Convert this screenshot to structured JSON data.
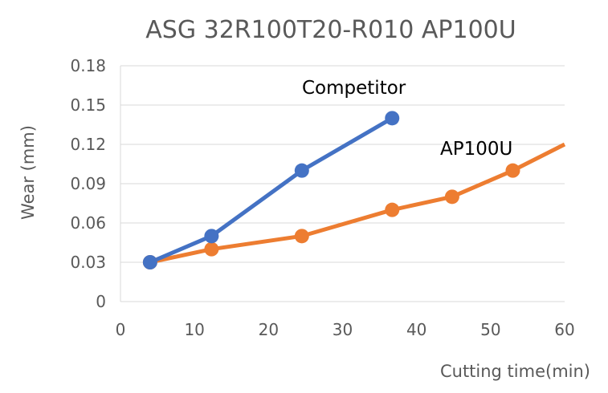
{
  "chart_data": {
    "type": "line",
    "title": "ASG 32R100T20-R010 AP100U",
    "xlabel": "Cutting time(min)",
    "ylabel": "Wear (mm)",
    "xlim": [
      0,
      60
    ],
    "ylim": [
      0,
      0.18
    ],
    "x_ticks": [
      "0",
      "10",
      "20",
      "30",
      "40",
      "50",
      "60"
    ],
    "y_ticks": [
      "0",
      "0.03",
      "0.06",
      "0.09",
      "0.12",
      "0.15",
      "0.18"
    ],
    "grid": true,
    "legend": "none",
    "series": [
      {
        "name": "Competitor",
        "color": "#4472c4",
        "marker_indices": [
          0,
          1,
          2,
          3
        ],
        "points": [
          [
            4,
            0.03
          ],
          [
            12.3,
            0.05
          ],
          [
            24.5,
            0.1
          ],
          [
            36.7,
            0.14
          ]
        ]
      },
      {
        "name": "AP100U",
        "color": "#ed7d31",
        "marker_indices": [
          0,
          1,
          2,
          3,
          4,
          5
        ],
        "points": [
          [
            4,
            0.03
          ],
          [
            12.3,
            0.04
          ],
          [
            24.5,
            0.05
          ],
          [
            36.7,
            0.07
          ],
          [
            44.8,
            0.08
          ],
          [
            53,
            0.1
          ],
          [
            60,
            0.12
          ]
        ]
      }
    ]
  }
}
